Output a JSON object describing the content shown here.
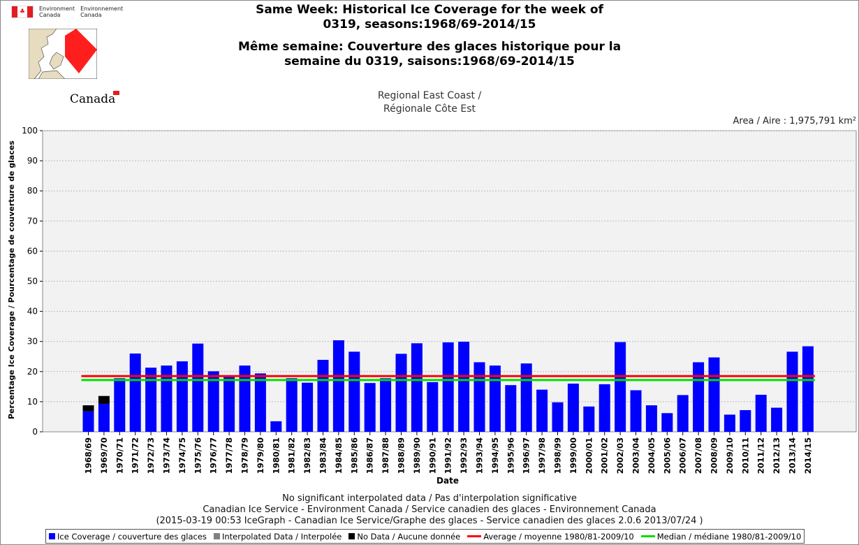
{
  "header": {
    "dept_en": [
      "Environment",
      "Canada"
    ],
    "dept_fr": [
      "Environnement",
      "Canada"
    ],
    "wordmark": "Canada"
  },
  "title": {
    "line1": "Same Week: Historical Ice Coverage for the week of",
    "line2": "0319, seasons:1968/69-2014/15",
    "line3": "Même semaine: Couverture des glaces historique pour la",
    "line4": "semaine du 0319, saisons:1968/69-2014/15"
  },
  "region": {
    "line1": "Regional East Coast /",
    "line2": "Régionale Côte Est"
  },
  "area": "Area / Aire : 1,975,791 km²",
  "footer": {
    "line1": "No significant interpolated data / Pas d'interpolation significative",
    "line2": "Canadian Ice Service - Environment Canada / Service canadien des glaces - Environnement Canada",
    "line3": "(2015-03-19 00:53 IceGraph - Canadian Ice Service/Graphe des glaces - Service canadien des glaces 2.0.6 2013/07/24 )"
  },
  "legend": {
    "ice": "Ice Coverage / couverture des glaces",
    "interp": "Interpolated Data / Interpolée",
    "nodata": "No Data / Aucune donnée",
    "average": "Average / moyenne 1980/81-2009/10",
    "median": "Median / médiane 1980/81-2009/10"
  },
  "colors": {
    "ice": "#0000ff",
    "interp": "#808080",
    "nodata": "#000000",
    "average": "#ff0000",
    "median": "#00dd00",
    "plot_bg": "#f2f2f2",
    "grid": "#bbbbbb"
  },
  "chart_data": {
    "type": "bar",
    "xlabel": "Date",
    "ylabel": "Percentage Ice Coverage / Pourcentage de couverture de glaces",
    "ylim": [
      0,
      100
    ],
    "yticks": [
      0,
      10,
      20,
      30,
      40,
      50,
      60,
      70,
      80,
      90,
      100
    ],
    "grid": true,
    "categories": [
      "1968/69",
      "1969/70",
      "1970/71",
      "1971/72",
      "1972/73",
      "1973/74",
      "1974/75",
      "1975/76",
      "1976/77",
      "1977/78",
      "1978/79",
      "1979/80",
      "1980/81",
      "1981/82",
      "1982/83",
      "1983/84",
      "1984/85",
      "1985/86",
      "1986/87",
      "1987/88",
      "1988/89",
      "1989/90",
      "1990/91",
      "1991/92",
      "1992/93",
      "1993/94",
      "1994/95",
      "1995/96",
      "1996/97",
      "1997/98",
      "1998/99",
      "1999/00",
      "2000/01",
      "2001/02",
      "2002/03",
      "2003/04",
      "2004/05",
      "2005/06",
      "2006/07",
      "2007/08",
      "2008/09",
      "2009/10",
      "2010/11",
      "2011/12",
      "2012/13",
      "2013/14",
      "2014/15"
    ],
    "series": [
      {
        "name": "Ice Coverage / couverture des glaces",
        "values": [
          6.8,
          9.3,
          17.8,
          26.0,
          21.3,
          22.0,
          23.4,
          29.3,
          20.1,
          18.5,
          22.0,
          19.4,
          3.5,
          17.8,
          16.3,
          23.9,
          30.4,
          26.6,
          16.2,
          17.8,
          25.9,
          29.4,
          16.5,
          29.7,
          29.9,
          23.1,
          22.0,
          15.5,
          22.7,
          14.0,
          9.8,
          16.0,
          8.4,
          15.8,
          29.8,
          13.8,
          8.8,
          6.2,
          12.2,
          23.1,
          24.7,
          5.7,
          7.2,
          12.3,
          8.0,
          26.6,
          28.4
        ]
      },
      {
        "name": "No Data / Aucune donnée",
        "values": [
          2.0,
          2.6,
          0,
          0,
          0,
          0,
          0,
          0,
          0,
          0,
          0,
          0,
          0,
          0,
          0,
          0,
          0,
          0,
          0,
          0,
          0,
          0,
          0,
          0,
          0,
          0,
          0,
          0,
          0,
          0,
          0,
          0,
          0,
          0,
          0,
          0,
          0,
          0,
          0,
          0,
          0,
          0,
          0,
          0,
          0,
          0,
          0
        ]
      }
    ],
    "average": 18.5,
    "median": 17.2
  }
}
